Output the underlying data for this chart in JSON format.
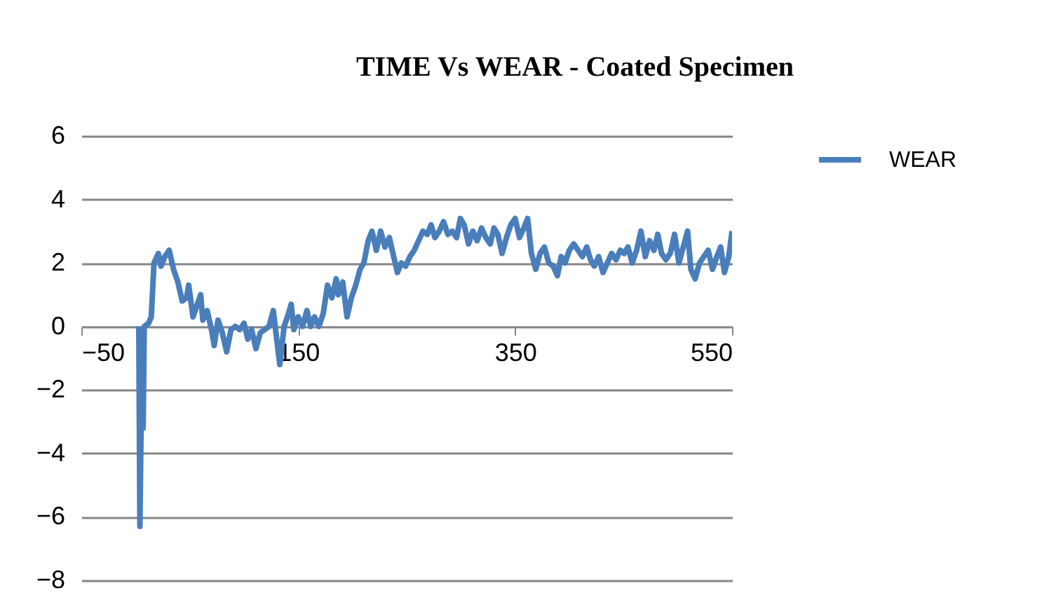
{
  "chart_data": {
    "type": "line",
    "title": "TIME Vs WEAR - Coated Specimen",
    "x": [
      3,
      4,
      5.5,
      7,
      8,
      12,
      14.5,
      17,
      21,
      23.5,
      27,
      31,
      35,
      39,
      43,
      47,
      49,
      53,
      56,
      60,
      62,
      66,
      70,
      72.5,
      76,
      80,
      84,
      88,
      92,
      96,
      100,
      103.5,
      107,
      111,
      115,
      119,
      123,
      127,
      130.5,
      133,
      137,
      141,
      143.5,
      146,
      150,
      154,
      158,
      161.5,
      165,
      169,
      173,
      177,
      181,
      185,
      187,
      191,
      195,
      199,
      203,
      207,
      210.5,
      214.5,
      218,
      222,
      226,
      230,
      234,
      238,
      241.5,
      245,
      249,
      253,
      257,
      261,
      265,
      269,
      272.5,
      276,
      280,
      284,
      288,
      292,
      296,
      299.5,
      303,
      307,
      311,
      315,
      319,
      323,
      327,
      330.5,
      334,
      338,
      342,
      346,
      350,
      354,
      358,
      361.5,
      365,
      369,
      373,
      377,
      381,
      385,
      389,
      392.5,
      396,
      400,
      404,
      408,
      412,
      416,
      419.5,
      423,
      427,
      431,
      435,
      439,
      443,
      447,
      450.5,
      454,
      458,
      462,
      466,
      470,
      474,
      478,
      481.5,
      485,
      489,
      493,
      497,
      501,
      505,
      509,
      512,
      516,
      520,
      524,
      528,
      532,
      536,
      539.5,
      543,
      547,
      550
    ],
    "series": [
      {
        "name": "WEAR",
        "color": "#4a7ebb",
        "values": [
          0,
          -6.3,
          -2,
          -3.2,
          0,
          0.1,
          0.3,
          2.0,
          2.3,
          1.9,
          2.2,
          2.4,
          1.8,
          1.4,
          0.8,
          0.9,
          1.3,
          0.3,
          0.6,
          1.0,
          0.2,
          0.5,
          -0.1,
          -0.6,
          0.2,
          -0.2,
          -0.8,
          -0.1,
          0.0,
          -0.1,
          0.1,
          -0.4,
          -0.1,
          -0.7,
          -0.2,
          -0.1,
          0.0,
          0.5,
          -0.5,
          -1.2,
          0.0,
          0.4,
          0.7,
          -0.1,
          0.3,
          0.0,
          0.5,
          0.0,
          0.3,
          0.0,
          0.4,
          1.3,
          0.9,
          1.5,
          1.0,
          1.4,
          0.3,
          0.9,
          1.3,
          1.8,
          2.0,
          2.7,
          3.0,
          2.4,
          3.0,
          2.5,
          2.8,
          2.2,
          1.7,
          2.0,
          1.9,
          2.2,
          2.4,
          2.7,
          3.0,
          2.9,
          3.2,
          2.8,
          3.0,
          3.3,
          2.9,
          3.0,
          2.8,
          3.4,
          3.2,
          2.6,
          3.0,
          2.7,
          3.1,
          2.8,
          2.6,
          3.1,
          2.9,
          2.3,
          2.8,
          3.2,
          3.4,
          2.8,
          3.1,
          3.4,
          2.3,
          1.8,
          2.3,
          2.5,
          2.0,
          1.9,
          1.6,
          2.2,
          2.0,
          2.4,
          2.6,
          2.4,
          2.2,
          2.5,
          2.1,
          1.9,
          2.2,
          1.7,
          2.0,
          2.3,
          2.1,
          2.4,
          2.3,
          2.5,
          2.0,
          2.4,
          3.0,
          2.2,
          2.7,
          2.4,
          2.9,
          2.3,
          2.1,
          2.3,
          2.9,
          2.0,
          2.5,
          3.0,
          1.8,
          1.5,
          2.0,
          2.2,
          2.4,
          1.8,
          2.2,
          2.5,
          1.7,
          2.2,
          3.0
        ]
      }
    ],
    "xlim": [
      -50,
      550
    ],
    "xticks": [
      -50,
      150,
      350,
      550
    ],
    "ylim": [
      -8,
      6
    ],
    "yticks": [
      -8,
      -6,
      -4,
      -2,
      0,
      2,
      4,
      6
    ],
    "grid": "y",
    "legend": "right"
  }
}
